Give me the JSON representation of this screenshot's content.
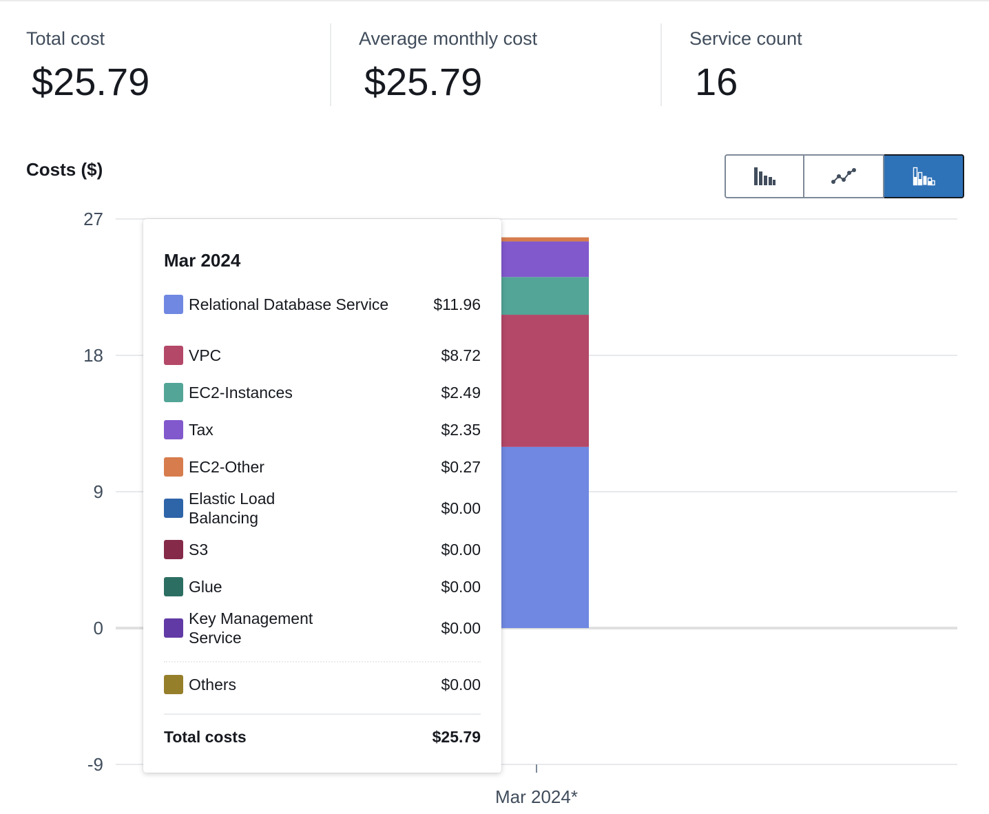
{
  "summary": {
    "total_cost_label": "Total cost",
    "total_cost_value": "$25.79",
    "average_label": "Average monthly cost",
    "average_value": "$25.79",
    "service_count_label": "Service count",
    "service_count_value": "16"
  },
  "chart_title": "Costs ($)",
  "chart_type_buttons": [
    {
      "name": "bar-chart-icon",
      "active": false
    },
    {
      "name": "line-chart-icon",
      "active": false
    },
    {
      "name": "stacked-bar-chart-icon",
      "active": true
    }
  ],
  "colors": {
    "active_button": "#2e72b8",
    "gridline": "#dfe2e6",
    "axis": "#e0e0e0"
  },
  "tooltip": {
    "title": "Mar 2024",
    "total_label": "Total costs",
    "total_value": "$25.79",
    "rows": [
      {
        "name": "Relational Database Service",
        "value": "$11.96",
        "color": "#7088e1"
      },
      {
        "name": "VPC",
        "value": "$8.72",
        "color": "#b34868"
      },
      {
        "name": "EC2-Instances",
        "value": "$2.49",
        "color": "#52a597"
      },
      {
        "name": "Tax",
        "value": "$2.35",
        "color": "#8159cc"
      },
      {
        "name": "EC2-Other",
        "value": "$0.27",
        "color": "#d67c4d"
      },
      {
        "name": "Elastic Load Balancing",
        "value": "$0.00",
        "color": "#2e64a8"
      },
      {
        "name": "S3",
        "value": "$0.00",
        "color": "#862a4a"
      },
      {
        "name": "Glue",
        "value": "$0.00",
        "color": "#2d6e63"
      },
      {
        "name": "Key Management Service",
        "value": "$0.00",
        "color": "#623aa5"
      }
    ],
    "others": {
      "name": "Others",
      "value": "$0.00",
      "color": "#967f2b"
    }
  },
  "chart_data": {
    "type": "bar",
    "stacked": true,
    "title": "Costs ($)",
    "xlabel": "",
    "ylabel": "",
    "categories": [
      "Mar 2024*"
    ],
    "ylim": [
      -9,
      27
    ],
    "yticks": [
      27,
      18,
      9,
      0,
      -9
    ],
    "series": [
      {
        "name": "Relational Database Service",
        "values": [
          11.96
        ],
        "color": "#7088e1"
      },
      {
        "name": "VPC",
        "values": [
          8.72
        ],
        "color": "#b34868"
      },
      {
        "name": "EC2-Instances",
        "values": [
          2.49
        ],
        "color": "#52a597"
      },
      {
        "name": "Tax",
        "values": [
          2.35
        ],
        "color": "#8159cc"
      },
      {
        "name": "EC2-Other",
        "values": [
          0.27
        ],
        "color": "#d67c4d"
      },
      {
        "name": "Elastic Load Balancing",
        "values": [
          0.0
        ],
        "color": "#2e64a8"
      },
      {
        "name": "S3",
        "values": [
          0.0
        ],
        "color": "#862a4a"
      },
      {
        "name": "Glue",
        "values": [
          0.0
        ],
        "color": "#2d6e63"
      },
      {
        "name": "Key Management Service",
        "values": [
          0.0
        ],
        "color": "#623aa5"
      },
      {
        "name": "Others",
        "values": [
          0.0
        ],
        "color": "#967f2b"
      }
    ]
  }
}
